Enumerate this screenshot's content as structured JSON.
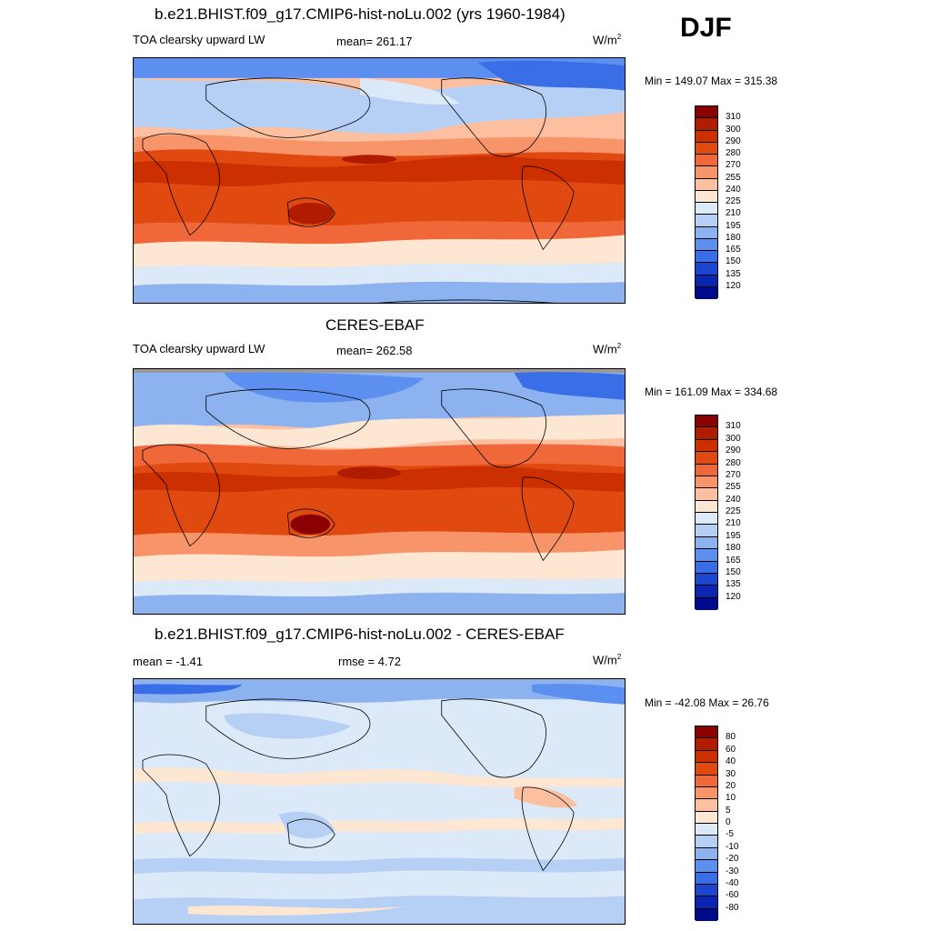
{
  "season": "DJF",
  "panels": [
    {
      "title": "b.e21.BHIST.f09_g17.CMIP6-hist-noLu.002 (yrs 1960-1984)",
      "left_label": "TOA clearsky upward LW",
      "center_label": "mean= 261.17",
      "units": "W/m",
      "units_sup": "2",
      "minmax": "Min = 149.07 Max = 315.38",
      "kind": "abs",
      "map_icon": "world-map-contour"
    },
    {
      "title": "CERES-EBAF",
      "left_label": "TOA clearsky upward LW",
      "center_label": "mean= 262.58",
      "units": "W/m",
      "units_sup": "2",
      "minmax": "Min = 161.09 Max = 334.68",
      "kind": "abs",
      "map_icon": "world-map-contour"
    },
    {
      "title": "b.e21.BHIST.f09_g17.CMIP6-hist-noLu.002 - CERES-EBAF",
      "left_label": "mean =  -1.41",
      "center_label": "rmse =   4.72",
      "units": "W/m",
      "units_sup": "2",
      "minmax": "Min = -42.08 Max =  26.76",
      "kind": "diff",
      "map_icon": "world-map-contour"
    }
  ],
  "colorbars": {
    "abs": {
      "labels": [
        "310",
        "300",
        "290",
        "280",
        "270",
        "255",
        "240",
        "225",
        "210",
        "195",
        "180",
        "165",
        "150",
        "135",
        "120"
      ],
      "colors": [
        "#8b0000",
        "#b01c00",
        "#cc2f00",
        "#e04a10",
        "#f0683a",
        "#f8946a",
        "#fcc0a0",
        "#fde6d2",
        "#dce9f8",
        "#b6cff4",
        "#8cb3ef",
        "#5c8ff0",
        "#3a6ee6",
        "#1c46d2",
        "#0c24b2",
        "#000a8c"
      ]
    },
    "diff": {
      "labels": [
        "80",
        "60",
        "40",
        "30",
        "20",
        "10",
        "5",
        "0",
        "-5",
        "-10",
        "-20",
        "-30",
        "-40",
        "-60",
        "-80"
      ],
      "colors": [
        "#8b0000",
        "#b01c00",
        "#cc2f00",
        "#e04a10",
        "#f0683a",
        "#f8946a",
        "#fcc0a0",
        "#fde6d2",
        "#dce9f8",
        "#b6cff4",
        "#8cb3ef",
        "#5c8ff0",
        "#3a6ee6",
        "#1c46d2",
        "#0c24b2",
        "#000a8c"
      ]
    }
  }
}
